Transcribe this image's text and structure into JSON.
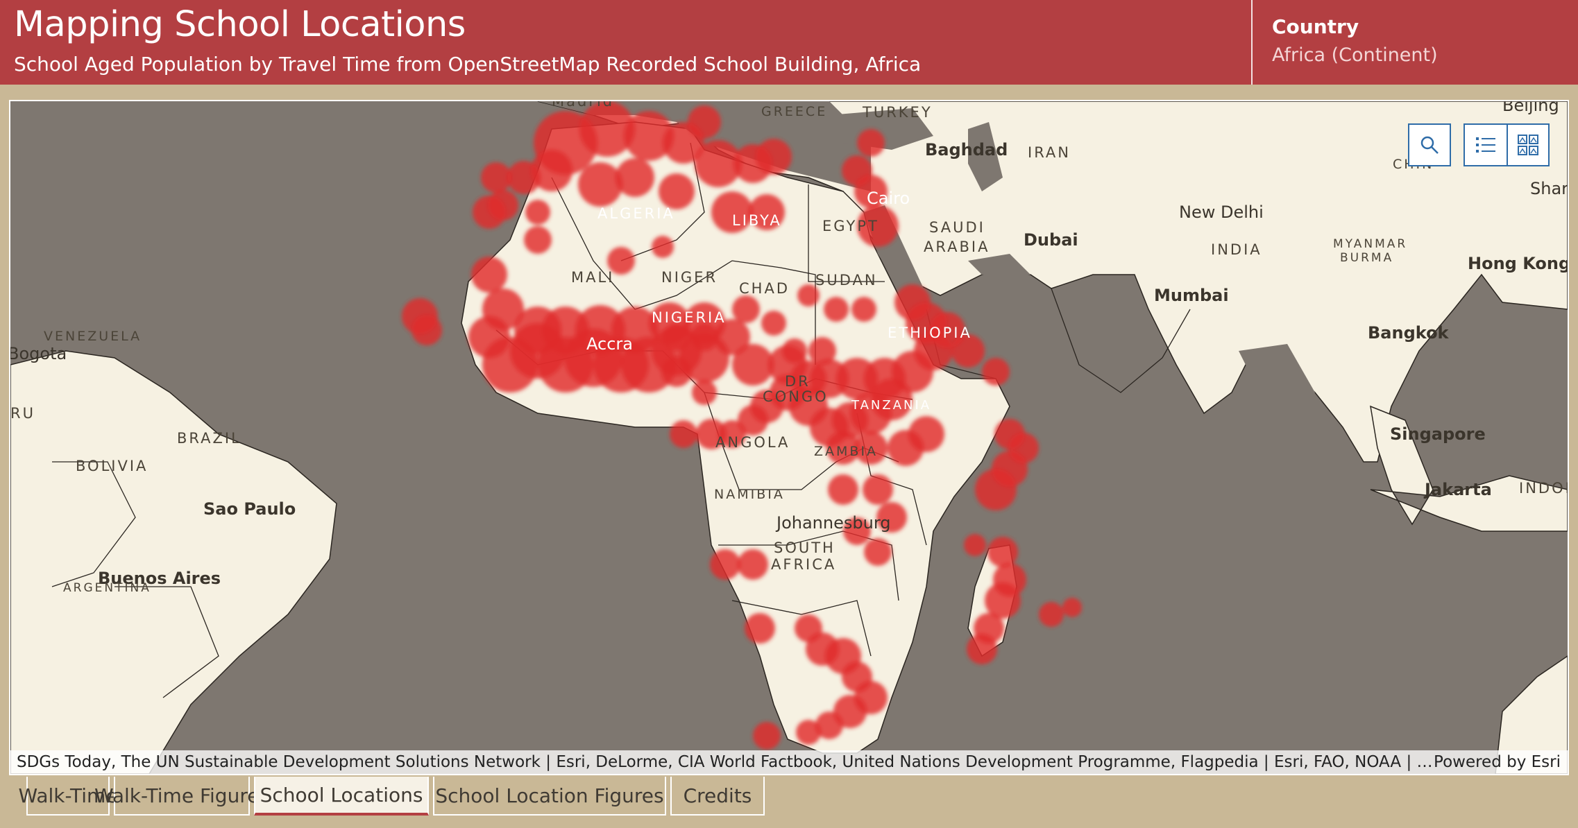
{
  "header": {
    "title": "Mapping School Locations",
    "subtitle": "School Aged Population by Travel Time from OpenStreetMap Recorded School Building, Africa",
    "country_label": "Country",
    "country_value": "Africa (Continent)"
  },
  "map": {
    "country_labels": [
      "GREECE",
      "TURKEY",
      "IRAN",
      "SAUDI",
      "ARABIA",
      "INDIA",
      "MYANMAR",
      "BURMA",
      "ALGERIA",
      "LIBYA",
      "EGYPT",
      "MALI",
      "NIGER",
      "CHAD",
      "SUDAN",
      "NIGERIA",
      "ETHIOPIA",
      "DR",
      "CONGO",
      "TANZANIA",
      "ANGOLA",
      "ZAMBIA",
      "NAMIBIA",
      "SOUTH",
      "AFRICA",
      "VENEZUELA",
      "BRAZIL",
      "BOLIVIA",
      "RU",
      "INDON",
      "CHIN",
      "Madrid"
    ],
    "city_labels": [
      "Baghdad",
      "Cairo",
      "Dubai",
      "New Delhi",
      "Mumbai",
      "Hong Kong",
      "Bangkok",
      "Singapore",
      "Jakarta",
      "Accra",
      "Johannesburg",
      "Sao Paulo",
      "Buenos Aires",
      "Bogota",
      "Beijing",
      "Shar",
      "ARGENTINA"
    ],
    "buttons": {
      "search": "search",
      "legend": "legend",
      "basemap": "basemap gallery"
    },
    "attribution": "SDGs Today, The UN Sustainable Development Solutions Network | Esri, DeLorme, CIA World Factbook, United Nations Development Programme, Flagpedia | Esri, FAO, NOAA | Esri, U…",
    "powered_by": "Powered by Esri",
    "colors": {
      "water": "#7e7770",
      "land": "#f6f1e2",
      "school_heat": "#e02a2a"
    }
  },
  "tabs": [
    {
      "label": "Walk-Time",
      "active": false
    },
    {
      "label": "Walk-Time Figures",
      "active": false
    },
    {
      "label": "School Locations",
      "active": true
    },
    {
      "label": "School Location Figures",
      "active": false
    },
    {
      "label": "Credits",
      "active": false
    }
  ]
}
